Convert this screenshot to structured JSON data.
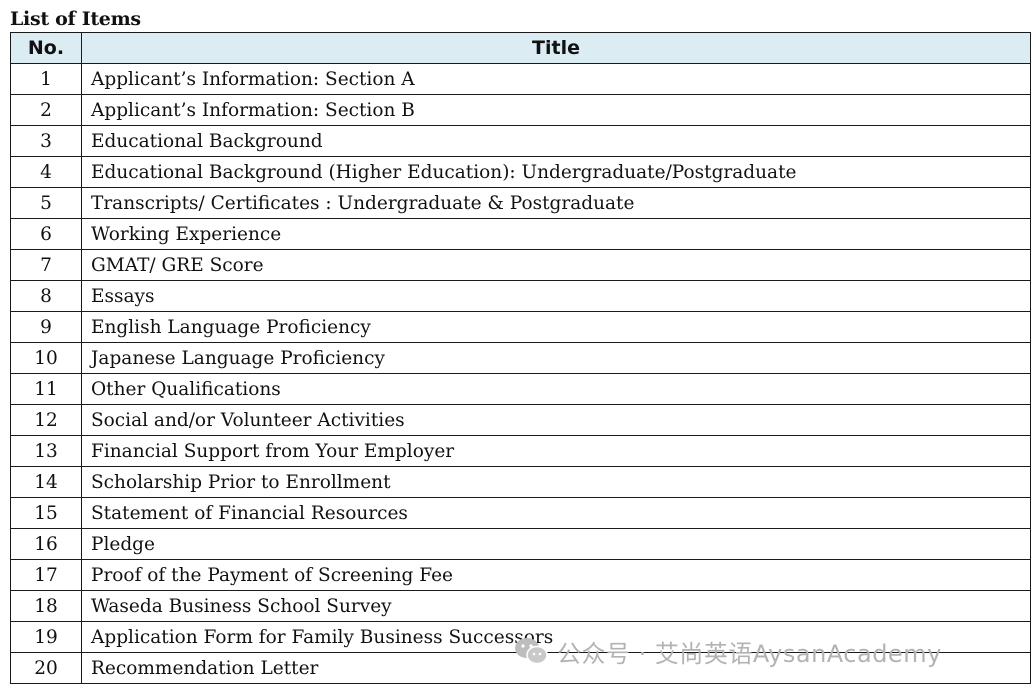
{
  "heading": "List of Items",
  "table": {
    "columns": [
      "No.",
      "Title"
    ],
    "rows": [
      {
        "no": "1",
        "title": "Applicant’s Information: Section A"
      },
      {
        "no": "2",
        "title": "Applicant’s Information: Section B"
      },
      {
        "no": "3",
        "title": "Educational Background"
      },
      {
        "no": "4",
        "title": "Educational Background (Higher Education): Undergraduate/Postgraduate"
      },
      {
        "no": "5",
        "title": "Transcripts/ Certificates : Undergraduate & Postgraduate"
      },
      {
        "no": "6",
        "title": "Working Experience"
      },
      {
        "no": "7",
        "title": "GMAT/ GRE Score"
      },
      {
        "no": "8",
        "title": "Essays"
      },
      {
        "no": "9",
        "title": "English Language Proficiency"
      },
      {
        "no": "10",
        "title": "Japanese Language Proficiency"
      },
      {
        "no": "11",
        "title": "Other Qualifications"
      },
      {
        "no": "12",
        "title": "Social and/or Volunteer Activities"
      },
      {
        "no": "13",
        "title": "Financial Support from Your Employer"
      },
      {
        "no": "14",
        "title": "Scholarship Prior to Enrollment"
      },
      {
        "no": "15",
        "title": "Statement of Financial Resources"
      },
      {
        "no": "16",
        "title": "Pledge"
      },
      {
        "no": "17",
        "title": "Proof of the Payment of Screening Fee"
      },
      {
        "no": "18",
        "title": "Waseda Business School Survey"
      },
      {
        "no": "19",
        "title": "Application Form for Family Business Successors"
      },
      {
        "no": "20",
        "title": "Recommendation Letter"
      }
    ]
  },
  "watermark": {
    "text": "公众号 · 艾尚英语AysanAcademy",
    "icon": "wechat-icon"
  },
  "colors": {
    "header_bg": "#dcecf3",
    "border": "#1a1a1a",
    "watermark": "#b3b3b3"
  }
}
